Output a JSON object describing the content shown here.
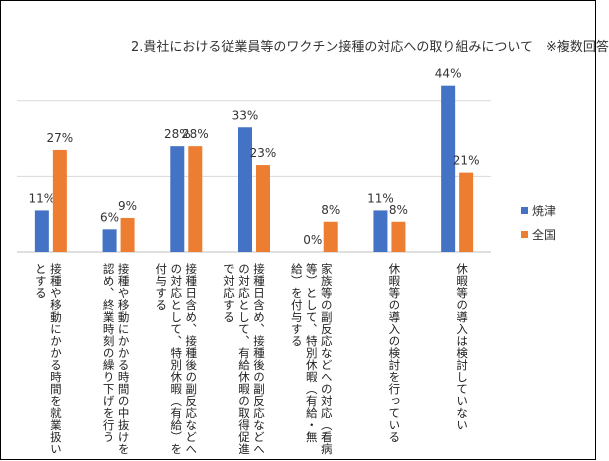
{
  "chart_data": {
    "type": "bar",
    "title": "2.貴社における従業員等のワクチン接種の対応への取り組みについて　※複数回答",
    "categories": [
      [
        "接種や移動にかかる時間を就業扱い",
        "とする"
      ],
      [
        "接種や移動にかかる時間の中抜けを",
        "認め、終業時刻の繰り下げを行う"
      ],
      [
        "接種日含め、接種後の副反応などへ",
        "の対応として、特別休暇（有給）を",
        "付与する"
      ],
      [
        "接種日含め、接種後の副反応などへ",
        "の対応として、有給休暇の取得促進",
        "で対応する"
      ],
      [
        "家族等の副反応などへの対応（看病",
        "等）として、特別休暇（有給・無",
        "給）を付与する"
      ],
      [
        "休暇等の導入の検討を行っている"
      ],
      [
        "休暇等の導入は検討していない"
      ]
    ],
    "series": [
      {
        "name": "焼津",
        "color": "#4472C4",
        "values": [
          11,
          6,
          28,
          33,
          0,
          11,
          44
        ],
        "labels": [
          "11%",
          "6%",
          "28%",
          "33%",
          "0%",
          "11%",
          "44%"
        ]
      },
      {
        "name": "全国",
        "color": "#ED7D31",
        "values": [
          27,
          9,
          28,
          23,
          8,
          8,
          21
        ],
        "labels": [
          "27%",
          "9%",
          "28%",
          "23%",
          "8%",
          "8%",
          "21%"
        ]
      }
    ],
    "ylim": [
      0,
      50
    ],
    "grid": true,
    "legend_position": "right"
  }
}
